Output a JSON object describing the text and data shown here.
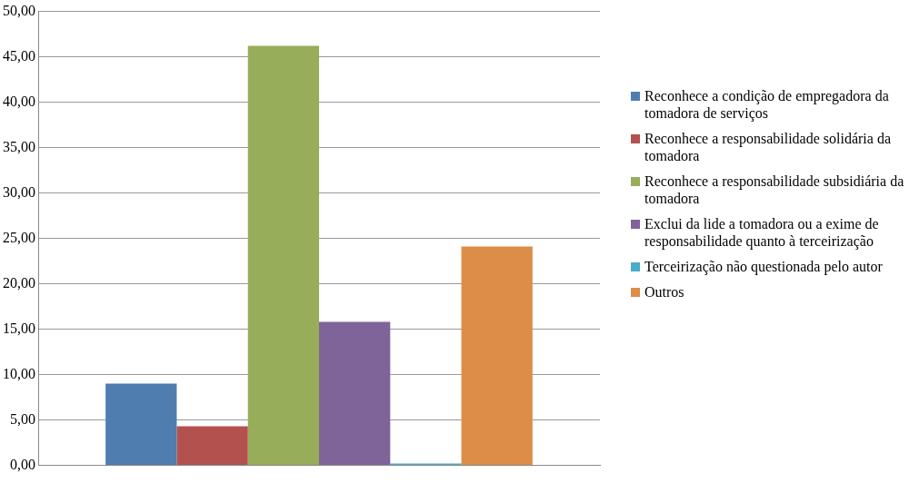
{
  "chart_data": {
    "type": "bar",
    "categories": [
      null
    ],
    "series": [
      {
        "name": "Reconhece a condição de empregadora da tomadora de serviços",
        "color": "#4f7db0",
        "values": [
          9.0
        ]
      },
      {
        "name": "Reconhece a responsabilidade solidária da tomadora",
        "color": "#b3514e",
        "values": [
          4.3
        ]
      },
      {
        "name": "Reconhece a responsabilidade subsidiária da tomadora",
        "color": "#97ad59",
        "values": [
          46.2
        ]
      },
      {
        "name": "Exclui da lide a tomadora ou a exime de responsabilidade quanto à terceirização",
        "color": "#7f6499",
        "values": [
          15.8
        ]
      },
      {
        "name": "Terceirização não questionada pelo autor",
        "color": "#4aacc6",
        "values": [
          0.2
        ]
      },
      {
        "name": "Outros",
        "color": "#dd8d47",
        "values": [
          24.1
        ]
      }
    ],
    "ylim": [
      0,
      50
    ],
    "yticks": [
      {
        "value": 0,
        "label": "0,00"
      },
      {
        "value": 5,
        "label": "5,00"
      },
      {
        "value": 10,
        "label": "10,00"
      },
      {
        "value": 15,
        "label": "15,00"
      },
      {
        "value": 20,
        "label": "20,00"
      },
      {
        "value": 25,
        "label": "25,00"
      },
      {
        "value": 30,
        "label": "30,00"
      },
      {
        "value": 35,
        "label": "35,00"
      },
      {
        "value": 40,
        "label": "40,00"
      },
      {
        "value": 45,
        "label": "45,00"
      },
      {
        "value": 50,
        "label": "50,00"
      }
    ],
    "grid": "y",
    "legend": "right"
  }
}
